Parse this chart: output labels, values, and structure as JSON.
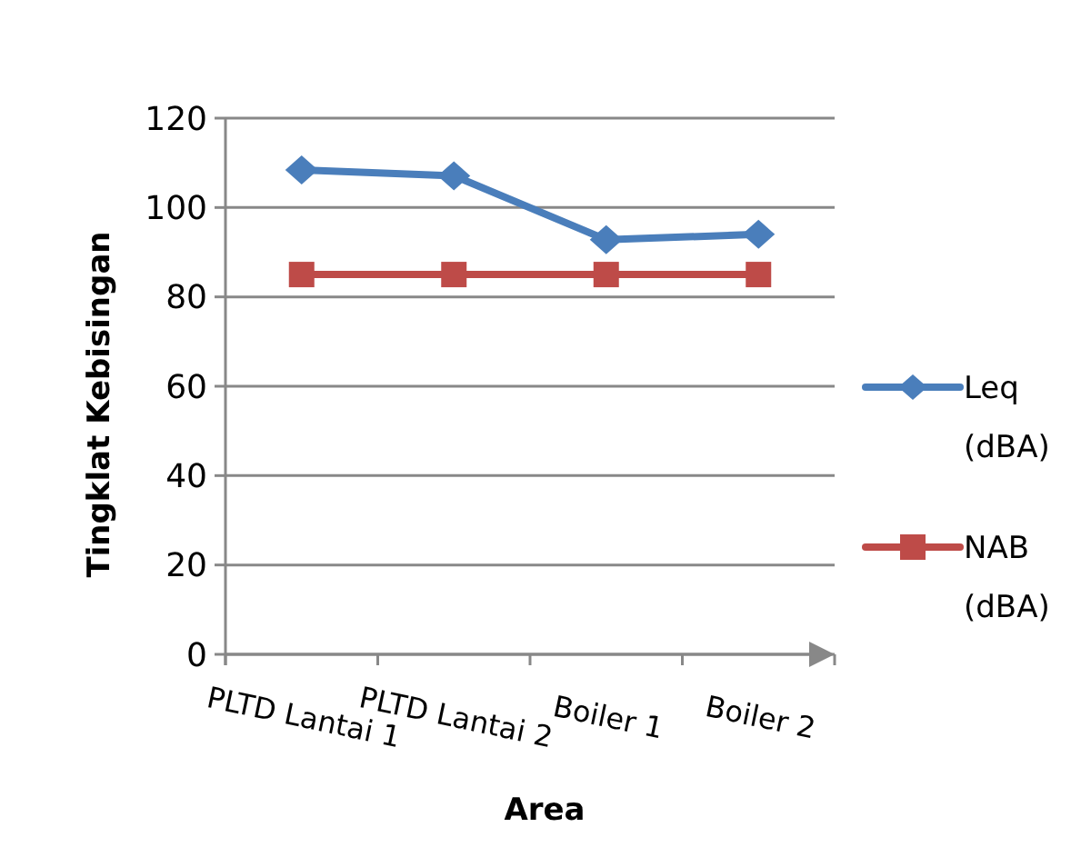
{
  "chart_data": {
    "type": "line",
    "xlabel": "Area",
    "ylabel": "Tingklat Kebisingan",
    "categories": [
      "PLTD Lantai 1",
      "PLTD Lantai 2",
      "Boiler 1",
      "Boiler 2"
    ],
    "series": [
      {
        "name": "Leq (dBA)",
        "color": "#4a7ebb",
        "marker": "diamond",
        "values": [
          108.4,
          107.1,
          92.8,
          94.0
        ]
      },
      {
        "name": "NAB (dBA)",
        "color": "#be4b48",
        "marker": "square",
        "values": [
          85,
          85,
          85,
          85
        ]
      }
    ],
    "ylim": [
      0,
      120
    ],
    "yticks": [
      0,
      20,
      40,
      60,
      80,
      100,
      120
    ],
    "grid": "y",
    "legend": "right"
  }
}
